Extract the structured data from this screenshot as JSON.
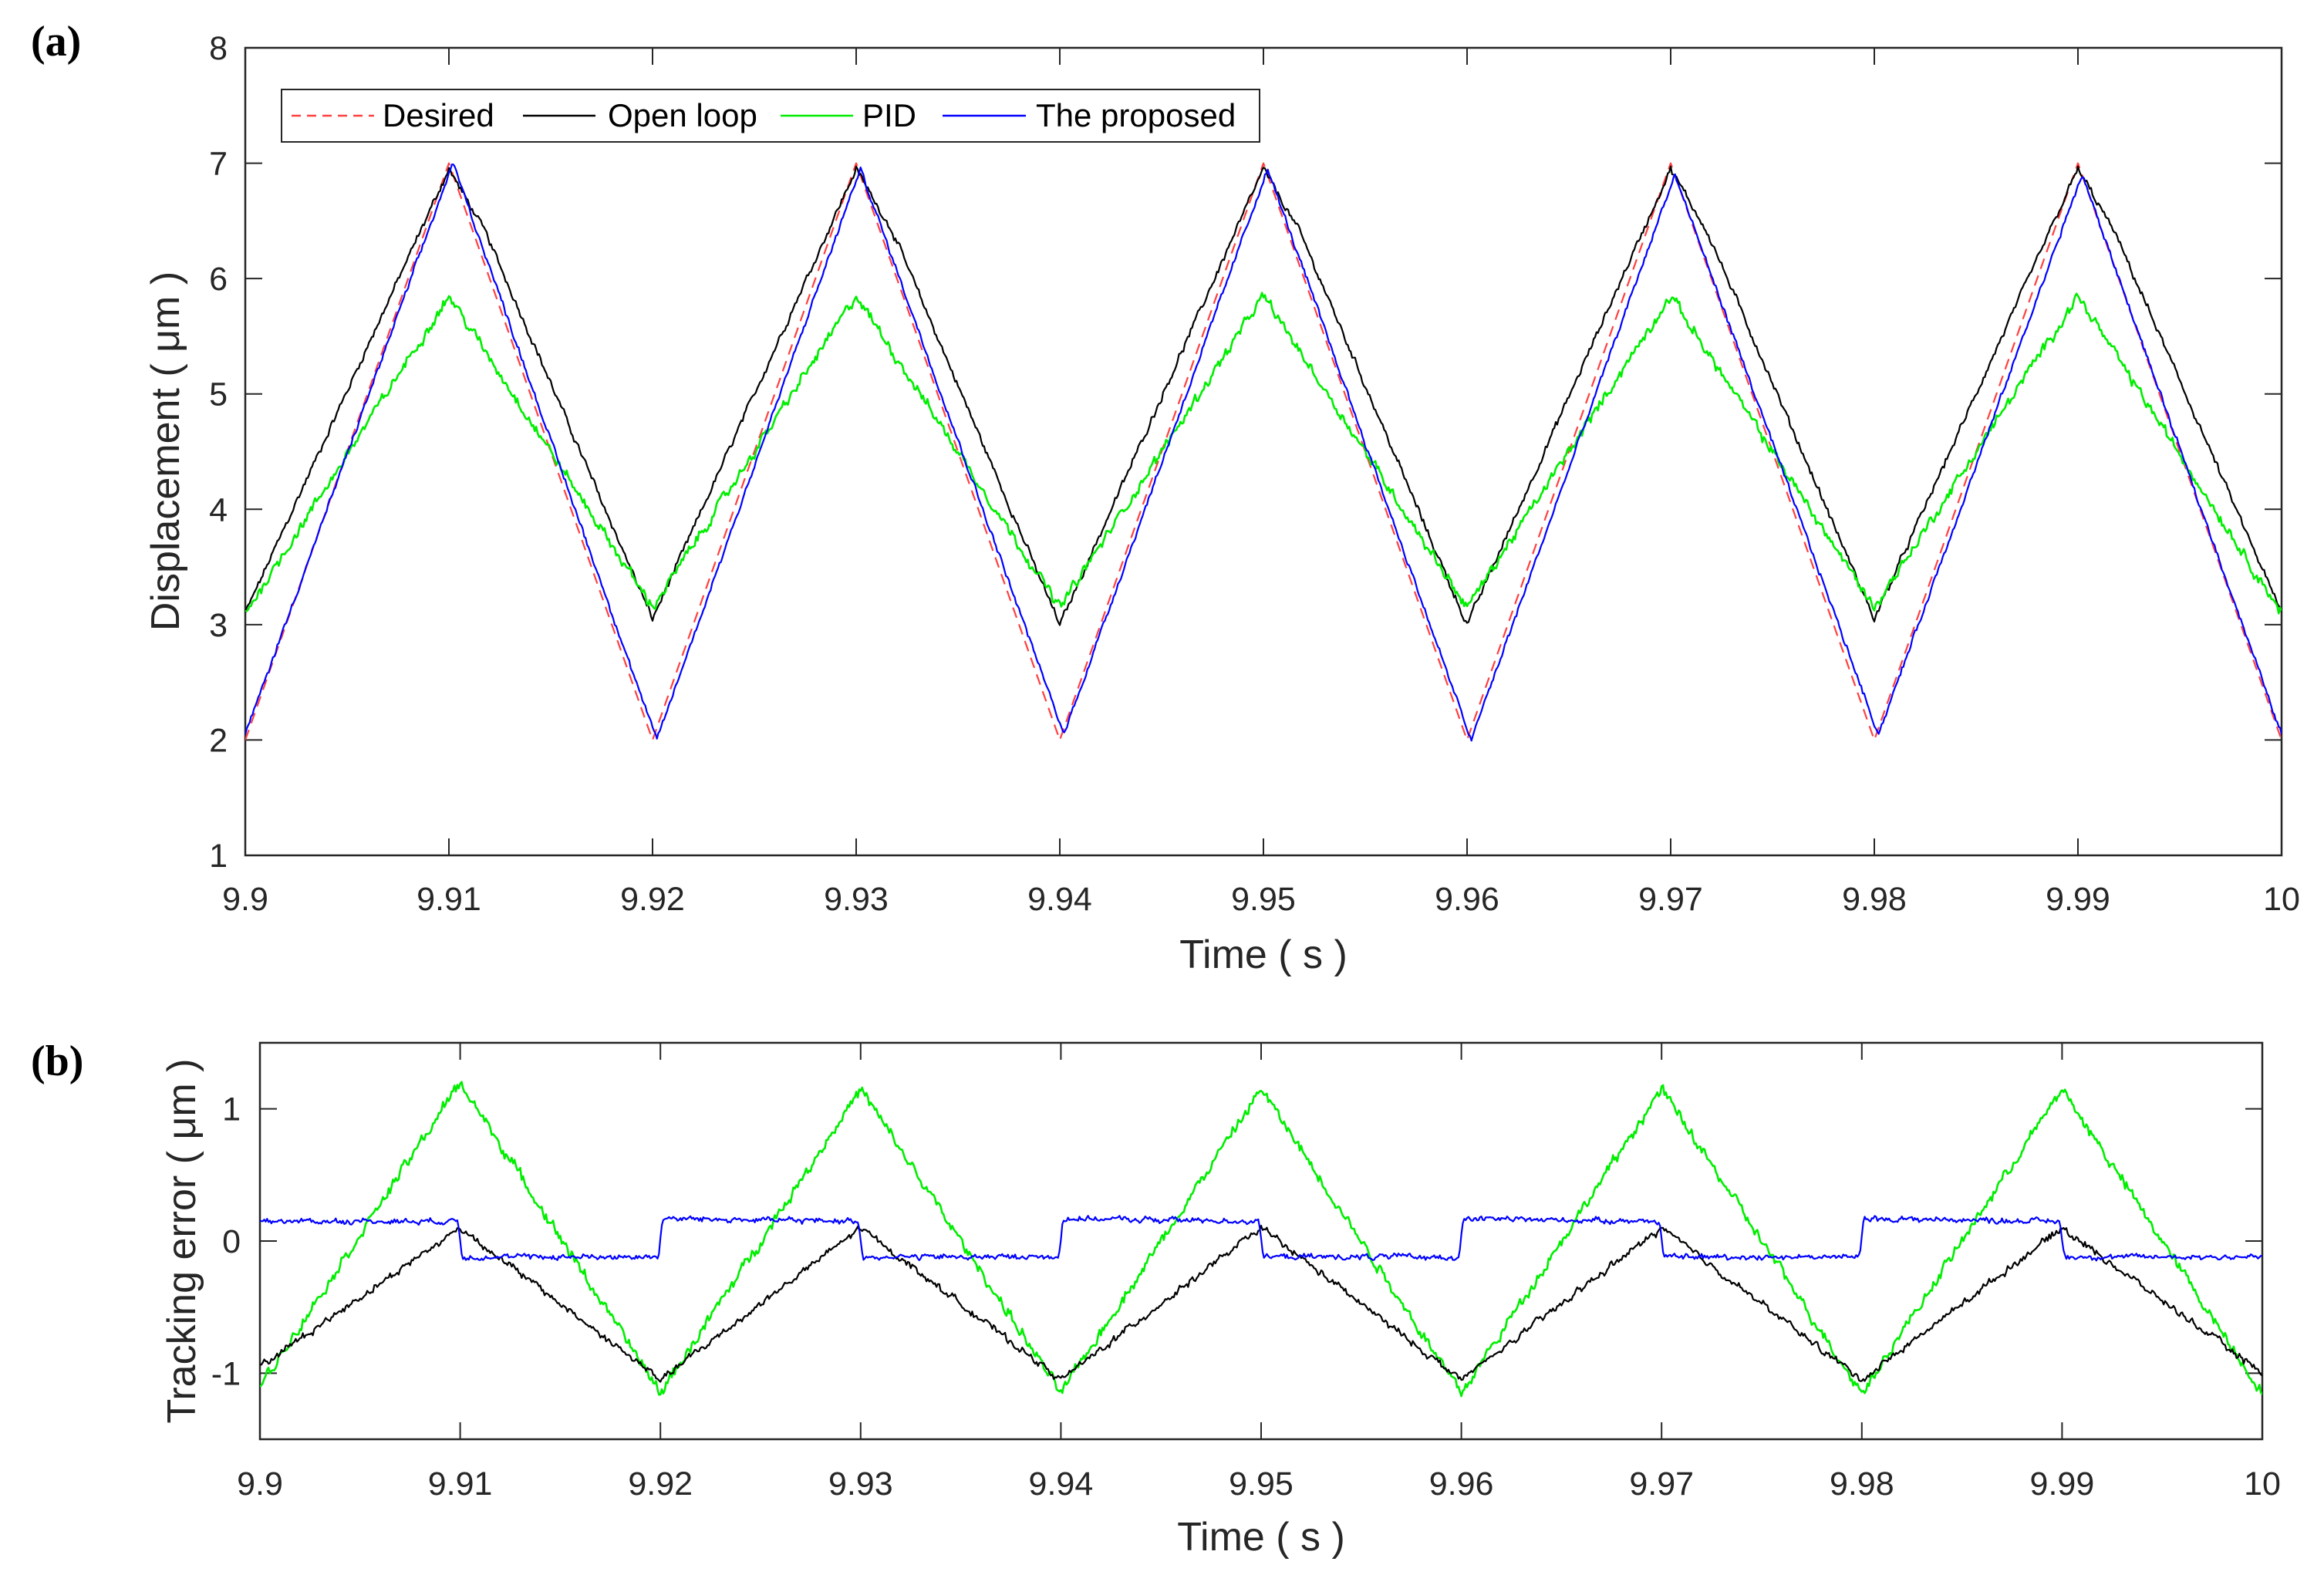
{
  "chart_data": [
    {
      "panel_label": "(a)",
      "type": "line",
      "xlabel": "Time ( s )",
      "ylabel": "Displacement ( μm )",
      "xlim": [
        9.9,
        10
      ],
      "ylim": [
        1,
        8
      ],
      "xticks": [
        "9.9",
        "9.91",
        "9.92",
        "9.93",
        "9.94",
        "9.95",
        "9.96",
        "9.97",
        "9.98",
        "9.99",
        "10"
      ],
      "yticks": [
        "1",
        "2",
        "3",
        "4",
        "5",
        "6",
        "7",
        "8"
      ],
      "legend_position": "top-left",
      "series": [
        {
          "name": "Desired",
          "color": "#ff4040",
          "style": "dashed",
          "t": [
            9.9,
            9.91,
            9.92,
            9.93,
            9.94,
            9.95,
            9.96,
            9.97,
            9.98,
            9.99,
            10.0
          ],
          "y": [
            2.0,
            7.0,
            2.0,
            7.0,
            2.0,
            7.0,
            2.0,
            7.0,
            2.0,
            7.0,
            2.0
          ]
        },
        {
          "name": "Open loop",
          "color": "#000000",
          "style": "solid",
          "t": [
            9.9,
            9.91,
            9.9118,
            9.92,
            9.93,
            9.9318,
            9.94,
            9.95,
            9.9518,
            9.96,
            9.97,
            9.9718,
            9.98,
            9.99,
            9.9918,
            10.0
          ],
          "y": [
            3.1,
            6.95,
            6.4,
            3.05,
            6.95,
            6.4,
            3.0,
            6.95,
            6.4,
            3.0,
            6.95,
            6.4,
            3.05,
            6.95,
            6.4,
            3.1
          ]
        },
        {
          "name": "PID",
          "color": "#00ee00",
          "style": "solid",
          "t": [
            9.9,
            9.91,
            9.92,
            9.93,
            9.94,
            9.95,
            9.96,
            9.97,
            9.98,
            9.99,
            10.0
          ],
          "y": [
            3.1,
            5.85,
            3.15,
            5.85,
            3.15,
            5.85,
            3.15,
            5.85,
            3.15,
            5.85,
            3.1
          ]
        },
        {
          "name": "The proposed",
          "color": "#0000ff",
          "style": "solid",
          "t": [
            9.9,
            9.9102,
            9.9202,
            9.9302,
            9.9402,
            9.9502,
            9.9602,
            9.9702,
            9.9802,
            9.9902,
            10.0
          ],
          "y": [
            2.05,
            7.0,
            2.0,
            6.95,
            2.05,
            6.95,
            2.0,
            6.9,
            2.05,
            6.9,
            2.05
          ]
        }
      ]
    },
    {
      "panel_label": "(b)",
      "type": "line",
      "xlabel": "Time ( s )",
      "ylabel": "Tracking error ( μm )",
      "xlim": [
        9.9,
        10
      ],
      "ylim": [
        -1.5,
        1.5
      ],
      "xticks": [
        "9.9",
        "9.91",
        "9.92",
        "9.93",
        "9.94",
        "9.95",
        "9.96",
        "9.97",
        "9.98",
        "9.99",
        "10"
      ],
      "yticks": [
        "-1",
        "0",
        "1"
      ],
      "series": [
        {
          "name": "PID",
          "color": "#00ee00",
          "style": "solid",
          "t": [
            9.9,
            9.91,
            9.92,
            9.93,
            9.94,
            9.95,
            9.96,
            9.97,
            9.98,
            9.99,
            10.0
          ],
          "y": [
            -1.1,
            1.2,
            -1.15,
            1.15,
            -1.15,
            1.15,
            -1.15,
            1.15,
            -1.15,
            1.15,
            -1.15
          ]
        },
        {
          "name": "Open loop",
          "color": "#000000",
          "style": "solid",
          "t": [
            9.9,
            9.91,
            9.92,
            9.93,
            9.94,
            9.95,
            9.96,
            9.97,
            9.98,
            9.99,
            10.0
          ],
          "y": [
            -0.95,
            0.1,
            -1.05,
            0.1,
            -1.05,
            0.1,
            -1.05,
            0.1,
            -1.05,
            0.1,
            -1.0
          ]
        },
        {
          "name": "The proposed",
          "color": "#0000ff",
          "style": "solid",
          "t": [
            9.9,
            9.9099,
            9.9101,
            9.9199,
            9.9201,
            9.9299,
            9.9301,
            9.9399,
            9.9401,
            9.9499,
            9.9501,
            9.9599,
            9.9601,
            9.9699,
            9.9701,
            9.9799,
            9.9801,
            9.9899,
            9.9901,
            10.0
          ],
          "y": [
            0.15,
            0.15,
            -0.12,
            -0.12,
            0.17,
            0.15,
            -0.12,
            -0.12,
            0.17,
            0.15,
            -0.12,
            -0.12,
            0.17,
            0.15,
            -0.12,
            -0.12,
            0.17,
            0.15,
            -0.12,
            -0.12
          ]
        }
      ]
    }
  ]
}
